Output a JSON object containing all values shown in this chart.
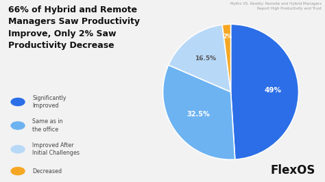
{
  "title_left": "66% of Hybrid and Remote\nManagers Saw Productivity\nImprove, Only 2% Saw\nProductivity Decrease",
  "subtitle": "Myths VS. Reality: Remote and Hybrid Managers\nReport High Productivity and Trust",
  "brand": "FlexOS",
  "slices": [
    49.0,
    32.5,
    16.5,
    2.0
  ],
  "labels_pie": [
    "49%",
    "32.5%",
    "16.5%",
    "2%"
  ],
  "slice_colors": [
    "#2B6EE8",
    "#6DB3F2",
    "#B8D8F8",
    "#F5A623"
  ],
  "legend_labels": [
    "Significantly\nImproved",
    "Same as in\nthe office",
    "Improved After\nInitial Challenges",
    "Decreased"
  ],
  "legend_colors": [
    "#2B6EE8",
    "#6DB3F2",
    "#B8D8F8",
    "#F5A623"
  ],
  "background_color": "#F2F2F2",
  "label_fontcolors": [
    "#FFFFFF",
    "#FFFFFF",
    "#555555",
    "#FFFFFF"
  ],
  "label_fontsizes": [
    7.5,
    7.0,
    6.5,
    5.5
  ],
  "label_radii": [
    0.62,
    0.58,
    0.62,
    0.82
  ],
  "title_fontsize": 9.0,
  "legend_fontsize": 5.8,
  "subtitle_fontsize": 4.0,
  "brand_fontsize": 12
}
